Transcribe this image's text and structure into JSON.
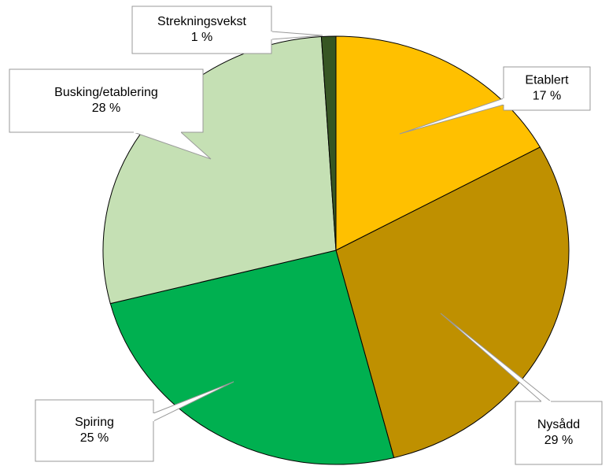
{
  "chart_data": {
    "type": "pie",
    "categories": [
      "Etablert",
      "Nysådd",
      "Spiring",
      "Busking/etablering",
      "Strekningsvekst"
    ],
    "values": [
      17,
      29,
      25,
      28,
      1
    ],
    "value_labels": [
      "17 %",
      "29 %",
      "25 %",
      "28 %",
      "1 %"
    ],
    "colors": [
      "#FFC000",
      "#BF9000",
      "#00B050",
      "#C5E0B4",
      "#375623"
    ]
  }
}
